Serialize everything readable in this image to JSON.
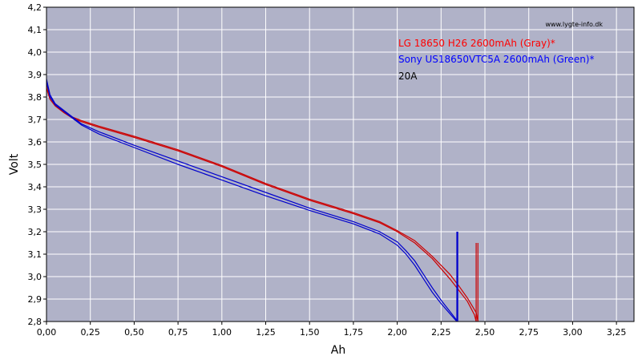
{
  "chart_data": {
    "type": "line",
    "title": "",
    "xlabel": "Ah",
    "ylabel": "Volt",
    "xlim": [
      0,
      3.35
    ],
    "ylim": [
      2.8,
      4.2
    ],
    "grid": true,
    "plot_background": "#b0b2c8",
    "x_ticks": [
      "0,00",
      "0,25",
      "0,50",
      "0,75",
      "1,00",
      "1,25",
      "1,50",
      "1,75",
      "2,00",
      "2,25",
      "2,50",
      "2,75",
      "3,00",
      "3,25"
    ],
    "y_ticks": [
      "2,8",
      "2,9",
      "3,0",
      "3,1",
      "3,2",
      "3,3",
      "3,4",
      "3,5",
      "3,6",
      "3,7",
      "3,8",
      "3,9",
      "4,0",
      "4,1",
      "4,2"
    ],
    "watermark": "www.lygte-info.dk",
    "legend": [
      {
        "text": "LG 18650 H26 2600mAh (Gray)*",
        "color": "#ff0000"
      },
      {
        "text": "Sony US18650VTC5A 2600mAh (Green)*",
        "color": "#0000ff"
      },
      {
        "text": "20A",
        "color": "#000000"
      }
    ],
    "series": [
      {
        "color": "#cc0000",
        "points": [
          [
            0.0,
            3.84
          ],
          [
            0.02,
            3.79
          ],
          [
            0.05,
            3.76
          ],
          [
            0.1,
            3.73
          ],
          [
            0.15,
            3.705
          ],
          [
            0.2,
            3.69
          ],
          [
            0.3,
            3.665
          ],
          [
            0.5,
            3.62
          ],
          [
            0.75,
            3.56
          ],
          [
            1.0,
            3.49
          ],
          [
            1.25,
            3.41
          ],
          [
            1.5,
            3.34
          ],
          [
            1.75,
            3.28
          ],
          [
            1.9,
            3.24
          ],
          [
            2.0,
            3.2
          ],
          [
            2.1,
            3.15
          ],
          [
            2.2,
            3.08
          ],
          [
            2.3,
            2.99
          ],
          [
            2.35,
            2.94
          ],
          [
            2.4,
            2.89
          ],
          [
            2.44,
            2.83
          ],
          [
            2.45,
            2.8
          ]
        ],
        "cutoff": {
          "x": 2.45,
          "y_top": 3.15
        }
      },
      {
        "color": "#cc0000",
        "points": [
          [
            0.0,
            3.86
          ],
          [
            0.02,
            3.8
          ],
          [
            0.05,
            3.765
          ],
          [
            0.1,
            3.735
          ],
          [
            0.15,
            3.71
          ],
          [
            0.2,
            3.695
          ],
          [
            0.3,
            3.67
          ],
          [
            0.5,
            3.625
          ],
          [
            0.75,
            3.565
          ],
          [
            1.0,
            3.495
          ],
          [
            1.25,
            3.415
          ],
          [
            1.5,
            3.345
          ],
          [
            1.75,
            3.285
          ],
          [
            1.9,
            3.245
          ],
          [
            2.0,
            3.205
          ],
          [
            2.1,
            3.16
          ],
          [
            2.2,
            3.09
          ],
          [
            2.3,
            3.01
          ],
          [
            2.35,
            2.96
          ],
          [
            2.4,
            2.905
          ],
          [
            2.45,
            2.84
          ],
          [
            2.46,
            2.8
          ]
        ],
        "cutoff": {
          "x": 2.46,
          "y_top": 3.15
        }
      },
      {
        "color": "#0000cc",
        "points": [
          [
            0.0,
            3.87
          ],
          [
            0.02,
            3.8
          ],
          [
            0.05,
            3.765
          ],
          [
            0.1,
            3.735
          ],
          [
            0.15,
            3.705
          ],
          [
            0.2,
            3.675
          ],
          [
            0.3,
            3.635
          ],
          [
            0.5,
            3.575
          ],
          [
            0.75,
            3.5
          ],
          [
            1.0,
            3.43
          ],
          [
            1.25,
            3.36
          ],
          [
            1.5,
            3.295
          ],
          [
            1.75,
            3.235
          ],
          [
            1.9,
            3.19
          ],
          [
            2.0,
            3.14
          ],
          [
            2.05,
            3.1
          ],
          [
            2.1,
            3.05
          ],
          [
            2.15,
            2.99
          ],
          [
            2.2,
            2.93
          ],
          [
            2.25,
            2.88
          ],
          [
            2.3,
            2.835
          ],
          [
            2.34,
            2.8
          ]
        ],
        "cutoff": {
          "x": 2.34,
          "y_top": 3.2
        }
      },
      {
        "color": "#0000cc",
        "points": [
          [
            0.0,
            3.88
          ],
          [
            0.02,
            3.81
          ],
          [
            0.05,
            3.77
          ],
          [
            0.1,
            3.74
          ],
          [
            0.15,
            3.71
          ],
          [
            0.2,
            3.68
          ],
          [
            0.3,
            3.645
          ],
          [
            0.5,
            3.585
          ],
          [
            0.75,
            3.515
          ],
          [
            1.0,
            3.445
          ],
          [
            1.25,
            3.375
          ],
          [
            1.5,
            3.305
          ],
          [
            1.75,
            3.245
          ],
          [
            1.9,
            3.2
          ],
          [
            2.0,
            3.155
          ],
          [
            2.05,
            3.115
          ],
          [
            2.1,
            3.07
          ],
          [
            2.15,
            3.01
          ],
          [
            2.2,
            2.95
          ],
          [
            2.25,
            2.895
          ],
          [
            2.3,
            2.845
          ],
          [
            2.345,
            2.8
          ]
        ],
        "cutoff": {
          "x": 2.345,
          "y_top": 3.2
        }
      }
    ]
  }
}
